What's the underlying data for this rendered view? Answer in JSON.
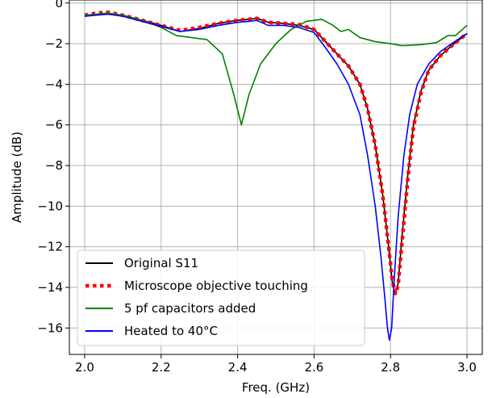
{
  "chart_data": {
    "type": "line",
    "title": "",
    "xlabel": "Freq. (GHz)",
    "ylabel": "Amplitude (dB)",
    "xlim": [
      1.96,
      3.04
    ],
    "ylim": [
      -17.3,
      0.15
    ],
    "grid": true,
    "legend_position": "lower-left",
    "x_ticks": [
      2.0,
      2.2,
      2.4,
      2.6,
      2.8,
      3.0
    ],
    "x_tick_labels": [
      "2.0",
      "2.2",
      "2.4",
      "2.6",
      "2.8",
      "3.0"
    ],
    "y_ticks": [
      0,
      -2,
      -4,
      -6,
      -8,
      -10,
      -12,
      -14,
      -16
    ],
    "y_tick_labels": [
      "0",
      "−2",
      "−4",
      "−6",
      "−8",
      "−10",
      "−12",
      "−14",
      "−16"
    ],
    "series": [
      {
        "name": "Original S11",
        "color": "#000000",
        "style": "solid",
        "points": [
          [
            2.0,
            -0.6
          ],
          [
            2.03,
            -0.55
          ],
          [
            2.06,
            -0.5
          ],
          [
            2.1,
            -0.6
          ],
          [
            2.15,
            -0.85
          ],
          [
            2.2,
            -1.1
          ],
          [
            2.25,
            -1.4
          ],
          [
            2.3,
            -1.25
          ],
          [
            2.35,
            -1.0
          ],
          [
            2.4,
            -0.85
          ],
          [
            2.43,
            -0.8
          ],
          [
            2.45,
            -0.75
          ],
          [
            2.48,
            -0.95
          ],
          [
            2.52,
            -1.0
          ],
          [
            2.56,
            -1.1
          ],
          [
            2.6,
            -1.3
          ],
          [
            2.63,
            -1.9
          ],
          [
            2.66,
            -2.5
          ],
          [
            2.69,
            -3.1
          ],
          [
            2.72,
            -4.0
          ],
          [
            2.74,
            -5.2
          ],
          [
            2.76,
            -7.0
          ],
          [
            2.78,
            -9.5
          ],
          [
            2.795,
            -12.0
          ],
          [
            2.805,
            -13.8
          ],
          [
            2.812,
            -14.3
          ],
          [
            2.82,
            -13.8
          ],
          [
            2.83,
            -11.5
          ],
          [
            2.845,
            -8.5
          ],
          [
            2.86,
            -6.0
          ],
          [
            2.88,
            -4.3
          ],
          [
            2.9,
            -3.3
          ],
          [
            2.93,
            -2.6
          ],
          [
            2.96,
            -2.1
          ],
          [
            3.0,
            -1.5
          ]
        ]
      },
      {
        "name": "Microscope objective touching",
        "color": "#ff0000",
        "style": "dotted",
        "points": [
          [
            2.0,
            -0.6
          ],
          [
            2.03,
            -0.5
          ],
          [
            2.06,
            -0.45
          ],
          [
            2.1,
            -0.6
          ],
          [
            2.15,
            -0.85
          ],
          [
            2.2,
            -1.1
          ],
          [
            2.25,
            -1.35
          ],
          [
            2.3,
            -1.2
          ],
          [
            2.35,
            -1.0
          ],
          [
            2.4,
            -0.85
          ],
          [
            2.43,
            -0.8
          ],
          [
            2.45,
            -0.75
          ],
          [
            2.48,
            -0.95
          ],
          [
            2.52,
            -1.0
          ],
          [
            2.56,
            -1.05
          ],
          [
            2.6,
            -1.3
          ],
          [
            2.63,
            -1.9
          ],
          [
            2.66,
            -2.5
          ],
          [
            2.69,
            -3.1
          ],
          [
            2.72,
            -4.0
          ],
          [
            2.74,
            -5.2
          ],
          [
            2.76,
            -7.0
          ],
          [
            2.78,
            -9.5
          ],
          [
            2.795,
            -12.0
          ],
          [
            2.805,
            -13.7
          ],
          [
            2.813,
            -14.3
          ],
          [
            2.82,
            -13.9
          ],
          [
            2.83,
            -11.8
          ],
          [
            2.845,
            -8.7
          ],
          [
            2.86,
            -6.1
          ],
          [
            2.88,
            -4.4
          ],
          [
            2.9,
            -3.3
          ],
          [
            2.93,
            -2.6
          ],
          [
            2.96,
            -2.1
          ],
          [
            3.0,
            -1.5
          ]
        ]
      },
      {
        "name": "5 pf capacitors added",
        "color": "#008000",
        "style": "solid",
        "points": [
          [
            2.0,
            -0.6
          ],
          [
            2.03,
            -0.55
          ],
          [
            2.06,
            -0.5
          ],
          [
            2.1,
            -0.6
          ],
          [
            2.15,
            -0.85
          ],
          [
            2.2,
            -1.2
          ],
          [
            2.24,
            -1.6
          ],
          [
            2.28,
            -1.7
          ],
          [
            2.32,
            -1.8
          ],
          [
            2.36,
            -2.5
          ],
          [
            2.39,
            -4.5
          ],
          [
            2.41,
            -6.0
          ],
          [
            2.43,
            -4.5
          ],
          [
            2.46,
            -3.0
          ],
          [
            2.5,
            -2.0
          ],
          [
            2.54,
            -1.3
          ],
          [
            2.58,
            -0.9
          ],
          [
            2.62,
            -0.8
          ],
          [
            2.65,
            -1.1
          ],
          [
            2.67,
            -1.4
          ],
          [
            2.69,
            -1.3
          ],
          [
            2.72,
            -1.7
          ],
          [
            2.76,
            -1.9
          ],
          [
            2.8,
            -2.0
          ],
          [
            2.83,
            -2.1
          ],
          [
            2.88,
            -2.05
          ],
          [
            2.92,
            -1.95
          ],
          [
            2.95,
            -1.6
          ],
          [
            2.97,
            -1.6
          ],
          [
            3.0,
            -1.1
          ]
        ]
      },
      {
        "name": "Heated to 40°C",
        "color": "#0000ff",
        "style": "solid",
        "points": [
          [
            2.0,
            -0.65
          ],
          [
            2.03,
            -0.6
          ],
          [
            2.06,
            -0.55
          ],
          [
            2.1,
            -0.65
          ],
          [
            2.15,
            -0.9
          ],
          [
            2.2,
            -1.15
          ],
          [
            2.25,
            -1.4
          ],
          [
            2.3,
            -1.3
          ],
          [
            2.35,
            -1.1
          ],
          [
            2.4,
            -0.95
          ],
          [
            2.43,
            -0.9
          ],
          [
            2.45,
            -0.85
          ],
          [
            2.48,
            -1.1
          ],
          [
            2.52,
            -1.1
          ],
          [
            2.56,
            -1.2
          ],
          [
            2.6,
            -1.45
          ],
          [
            2.63,
            -2.2
          ],
          [
            2.66,
            -3.0
          ],
          [
            2.69,
            -4.0
          ],
          [
            2.72,
            -5.5
          ],
          [
            2.74,
            -7.5
          ],
          [
            2.76,
            -10.0
          ],
          [
            2.775,
            -12.5
          ],
          [
            2.785,
            -14.5
          ],
          [
            2.792,
            -16.0
          ],
          [
            2.797,
            -16.6
          ],
          [
            2.803,
            -16.0
          ],
          [
            2.81,
            -13.5
          ],
          [
            2.82,
            -10.5
          ],
          [
            2.835,
            -7.5
          ],
          [
            2.85,
            -5.5
          ],
          [
            2.87,
            -4.0
          ],
          [
            2.9,
            -3.0
          ],
          [
            2.93,
            -2.4
          ],
          [
            2.96,
            -2.0
          ],
          [
            3.0,
            -1.5
          ]
        ]
      }
    ]
  }
}
